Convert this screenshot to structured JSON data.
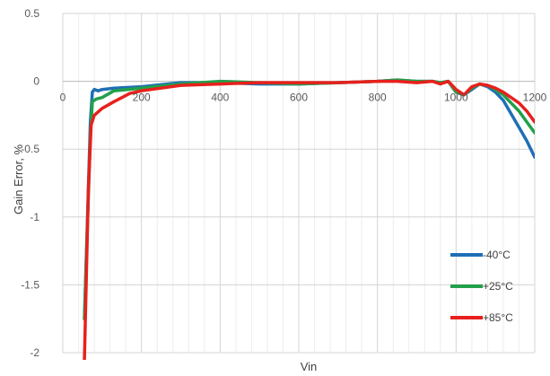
{
  "chart_data": {
    "type": "line",
    "title": "",
    "xlabel": "Vin",
    "ylabel": "Gain Error, %",
    "xlim": [
      0,
      1200
    ],
    "ylim": [
      -2,
      0.5
    ],
    "x_ticks": [
      0,
      200,
      400,
      600,
      800,
      1000,
      1200
    ],
    "y_ticks": [
      0.5,
      0,
      -0.5,
      -1,
      -1.5,
      -2
    ],
    "grid": true,
    "legend_position": "bottom-right",
    "series": [
      {
        "name": "-40°C",
        "color": "#1f6fb5",
        "x": [
          55,
          70,
          75,
          80,
          90,
          100,
          130,
          200,
          300,
          400,
          500,
          600,
          700,
          800,
          850,
          900,
          940,
          960,
          980,
          1000,
          1020,
          1040,
          1060,
          1080,
          1100,
          1120,
          1140,
          1160,
          1180,
          1200
        ],
        "y": [
          -1.75,
          -0.3,
          -0.08,
          -0.06,
          -0.07,
          -0.06,
          -0.05,
          -0.04,
          -0.01,
          -0.01,
          -0.02,
          -0.02,
          -0.01,
          0.0,
          0.01,
          0.0,
          0.0,
          -0.01,
          0.0,
          -0.08,
          -0.1,
          -0.06,
          -0.02,
          -0.04,
          -0.08,
          -0.14,
          -0.24,
          -0.34,
          -0.44,
          -0.56
        ]
      },
      {
        "name": "+25°C",
        "color": "#22a04a",
        "x": [
          55,
          70,
          75,
          85,
          100,
          130,
          200,
          300,
          400,
          500,
          600,
          700,
          800,
          850,
          900,
          940,
          960,
          980,
          1000,
          1020,
          1040,
          1060,
          1080,
          1100,
          1120,
          1140,
          1160,
          1180,
          1200
        ],
        "y": [
          -1.75,
          -0.4,
          -0.15,
          -0.13,
          -0.12,
          -0.07,
          -0.05,
          -0.02,
          0.0,
          -0.01,
          -0.02,
          -0.01,
          0.0,
          0.01,
          0.0,
          0.0,
          -0.01,
          0.0,
          -0.08,
          -0.1,
          -0.05,
          -0.02,
          -0.03,
          -0.06,
          -0.1,
          -0.16,
          -0.22,
          -0.3,
          -0.38
        ]
      },
      {
        "name": "+85°C",
        "color": "#e8201c",
        "x": [
          55,
          65,
          72,
          80,
          100,
          130,
          170,
          200,
          250,
          300,
          400,
          500,
          600,
          700,
          800,
          850,
          900,
          940,
          960,
          980,
          1000,
          1020,
          1040,
          1060,
          1080,
          1100,
          1120,
          1140,
          1160,
          1180,
          1200
        ],
        "y": [
          -2.05,
          -0.8,
          -0.32,
          -0.25,
          -0.2,
          -0.15,
          -0.09,
          -0.07,
          -0.05,
          -0.03,
          -0.02,
          -0.01,
          -0.01,
          -0.01,
          0.0,
          0.0,
          -0.01,
          0.0,
          -0.02,
          0.0,
          -0.06,
          -0.1,
          -0.04,
          -0.02,
          -0.03,
          -0.05,
          -0.08,
          -0.12,
          -0.16,
          -0.22,
          -0.3
        ]
      }
    ]
  }
}
